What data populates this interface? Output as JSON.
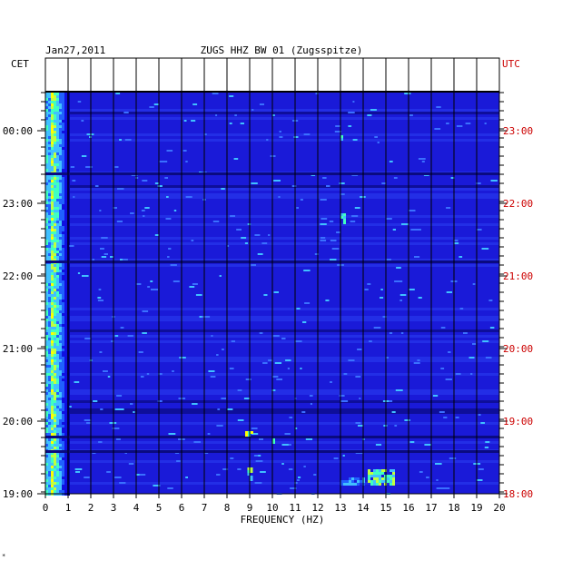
{
  "header": {
    "date": "Jan27,2011",
    "station": "ZUGS HHZ BW 01 (Zugsspitze)",
    "left_timezone": "CET",
    "right_timezone": "UTC",
    "corner_mark": "*"
  },
  "colors": {
    "background_spectrum": "#1a1ad8",
    "dark_band": "#0a0a80",
    "left_labels": "#000000",
    "right_labels": "#cc0000",
    "axis": "#000000"
  },
  "chart_data": {
    "type": "heatmap",
    "title": "ZUGS HHZ BW 01 (Zugsspitze)",
    "subtitle": "Jan27,2011",
    "xlabel": "FREQUENCY (HZ)",
    "ylabel_left": "CET",
    "ylabel_right": "UTC",
    "xlim": [
      0,
      20
    ],
    "x_ticks": [
      "0",
      "1",
      "2",
      "3",
      "4",
      "5",
      "6",
      "7",
      "8",
      "9",
      "10",
      "11",
      "12",
      "13",
      "14",
      "15",
      "16",
      "17",
      "18",
      "19",
      "20"
    ],
    "y_ticks_left": [
      "00:00",
      "23:00",
      "22:00",
      "21:00",
      "20:00",
      "19:00"
    ],
    "y_ticks_right": [
      "23:00",
      "22:00",
      "21:00",
      "20:00",
      "19:00",
      "18:00"
    ],
    "colormap": [
      "#0000a0",
      "#1010e0",
      "#2060ff",
      "#40c0ff",
      "#40ffc0",
      "#c0ff40",
      "#ffff00",
      "#ff8000",
      "#ff0000"
    ],
    "features": [
      {
        "name": "low-frequency energy band",
        "freq_hz": [
          0.1,
          1.0
        ],
        "intensity": "high"
      },
      {
        "name": "transient signal",
        "freq_hz": [
          13.0,
          15.3
        ],
        "time_cet": "19:10",
        "intensity": "medium"
      },
      {
        "name": "transient signal",
        "freq_hz": [
          8.8,
          9.2
        ],
        "time_cet": "19:45",
        "intensity": "medium"
      }
    ],
    "grid": true
  }
}
